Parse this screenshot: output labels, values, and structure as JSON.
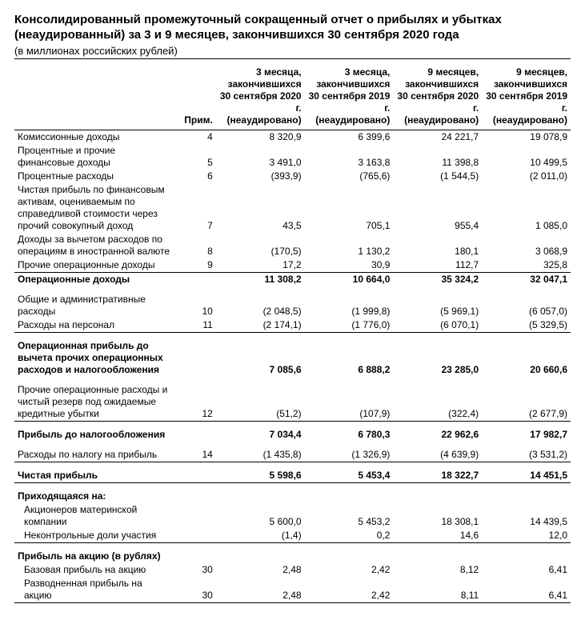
{
  "header": {
    "title": "Консолидированный промежуточный сокращенный отчет о прибылях и убытках (неаудированный) за 3 и 9 месяцев, закончившихся 30 сентября 2020 года",
    "subtitle": "(в миллионах российских рублей)"
  },
  "columns": {
    "note": "Прим.",
    "c1": "3 месяца, закончившихся 30 сентября 2020 г. (неаудировано)",
    "c2": "3 месяца, закончившихся 30 сентября 2019 г. (неаудировано)",
    "c3": "9 месяцев, закончившихся 30 сентября 2020 г. (неаудировано)",
    "c4": "9 месяцев, закончившихся 30 сентября 2019 г. (неаудировано)"
  },
  "rows": [
    {
      "label": "Комиссионные доходы",
      "note": "4",
      "v": [
        "8 320,9",
        "6 399,6",
        "24 221,7",
        "19 078,9"
      ]
    },
    {
      "label": "Процентные и прочие финансовые доходы",
      "note": "5",
      "v": [
        "3 491,0",
        "3 163,8",
        "11 398,8",
        "10 499,5"
      ]
    },
    {
      "label": "Процентные расходы",
      "note": "6",
      "v": [
        "(393,9)",
        "(765,6)",
        "(1 544,5)",
        "(2 011,0)"
      ]
    },
    {
      "label": "Чистая прибыль по финансовым активам, оцениваемым по справедливой стоимости через прочий совокупный доход",
      "note": "7",
      "v": [
        "43,5",
        "705,1",
        "955,4",
        "1 085,0"
      ]
    },
    {
      "label": "Доходы за вычетом расходов по операциям в иностранной валюте",
      "note": "8",
      "v": [
        "(170,5)",
        "1 130,2",
        "180,1",
        "3 068,9"
      ]
    },
    {
      "label": "Прочие операционные доходы",
      "note": "9",
      "v": [
        "17,2",
        "30,9",
        "112,7",
        "325,8"
      ],
      "borderBottom": true
    },
    {
      "label": "Операционные доходы",
      "bold": true,
      "v": [
        "11 308,2",
        "10 664,0",
        "35 324,2",
        "32 047,1"
      ]
    },
    {
      "spacer": true
    },
    {
      "label": "Общие и административные расходы",
      "note": "10",
      "v": [
        "(2 048,5)",
        "(1 999,8)",
        "(5 969,1)",
        "(6 057,0)"
      ]
    },
    {
      "label": "Расходы на персонал",
      "note": "11",
      "v": [
        "(2 174,1)",
        "(1 776,0)",
        "(6 070,1)",
        "(5 329,5)"
      ],
      "borderBottom": true
    },
    {
      "spacer": true
    },
    {
      "label": "Операционная прибыль до вычета прочих операционных расходов и налогообложения",
      "bold": true,
      "v": [
        "7 085,6",
        "6 888,2",
        "23 285,0",
        "20 660,6"
      ]
    },
    {
      "spacer": true
    },
    {
      "label": "Прочие операционные расходы и чистый резерв под ожидаемые кредитные убытки",
      "note": "12",
      "v": [
        "(51,2)",
        "(107,9)",
        "(322,4)",
        "(2 677,9)"
      ],
      "borderBottom": true
    },
    {
      "spacer": true
    },
    {
      "label": "Прибыль до налогообложения",
      "bold": true,
      "v": [
        "7 034,4",
        "6 780,3",
        "22 962,6",
        "17 982,7"
      ]
    },
    {
      "spacer": true
    },
    {
      "label": "Расходы по налогу на прибыль",
      "note": "14",
      "v": [
        "(1 435,8)",
        "(1 326,9)",
        "(4 639,9)",
        "(3 531,2)"
      ],
      "borderBottom": true
    },
    {
      "spacer": true
    },
    {
      "label": "Чистая прибыль",
      "bold": true,
      "v": [
        "5 598,6",
        "5 453,4",
        "18 322,7",
        "14 451,5"
      ],
      "borderBottom": true
    },
    {
      "spacer": true
    },
    {
      "label": "Приходящаяся на:",
      "bold": true
    },
    {
      "label": "Акционеров материнской компании",
      "indent": true,
      "v": [
        "5 600,0",
        "5 453,2",
        "18 308,1",
        "14 439,5"
      ]
    },
    {
      "label": "Неконтрольные доли участия",
      "indent": true,
      "v": [
        "(1,4)",
        "0,2",
        "14,6",
        "12,0"
      ],
      "borderBottom": true
    },
    {
      "spacer": true
    },
    {
      "label": "Прибыль на акцию (в рублях)",
      "bold": true
    },
    {
      "label": "Базовая прибыль на акцию",
      "indent": true,
      "note": "30",
      "v": [
        "2,48",
        "2,42",
        "8,12",
        "6,41"
      ]
    },
    {
      "label": "Разводненная прибыль на акцию",
      "indent": true,
      "note": "30",
      "v": [
        "2,48",
        "2,42",
        "8,11",
        "6,41"
      ],
      "borderBottom": true
    }
  ]
}
